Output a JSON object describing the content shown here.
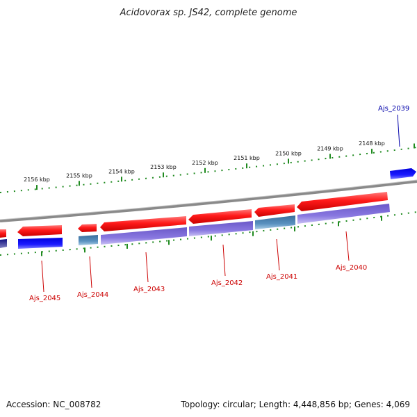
{
  "title": "Acidovorax sp. JS42, complete genome",
  "accession": "Accession: NC_008782",
  "summary": "Topology: circular; Length: 4,448,856 bp; Genes: 4,069",
  "colors": {
    "strand_forward": "#ff2020",
    "strand_reverse": "#1a1aff",
    "cds_purple": "#7b68d8",
    "cds_steel": "#4a82b0",
    "backbone": "#8a8a8a",
    "scale": "#1f8a1f",
    "label_forward": "#cc0000",
    "label_reverse": "#0000aa"
  },
  "scale_ticks": [
    "2156 kbp",
    "2155 kbp",
    "2154 kbp",
    "2153 kbp",
    "2152 kbp",
    "2151 kbp",
    "2150 kbp",
    "2149 kbp",
    "2148 kbp"
  ],
  "gene_labels": [
    {
      "text": "Ajs_2039",
      "strand": "reverse"
    },
    {
      "text": "Ajs_2040",
      "strand": "forward"
    },
    {
      "text": "Ajs_2041",
      "strand": "forward"
    },
    {
      "text": "Ajs_2042",
      "strand": "forward"
    },
    {
      "text": "Ajs_2043",
      "strand": "forward"
    },
    {
      "text": "Ajs_2044",
      "strand": "forward"
    },
    {
      "text": "Ajs_2045",
      "strand": "forward"
    }
  ]
}
